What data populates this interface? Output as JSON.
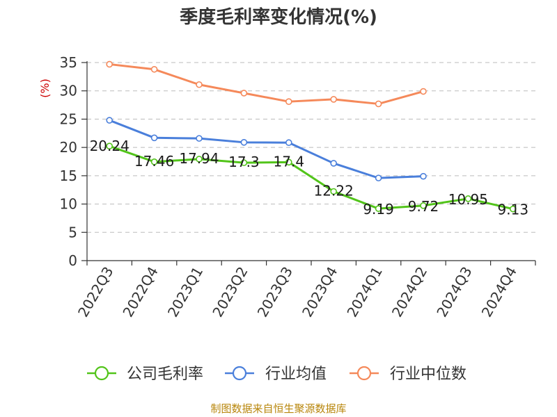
{
  "chart_data": {
    "type": "line",
    "title": "季度毛利率变化情况(%)",
    "ylabel": "(%)",
    "xlabel": "",
    "ylim": [
      0,
      35
    ],
    "yticks": [
      0,
      5,
      10,
      15,
      20,
      25,
      30,
      35
    ],
    "grid": true,
    "legend_position": "bottom",
    "categories": [
      "2022Q3",
      "2022Q4",
      "2023Q1",
      "2023Q2",
      "2023Q3",
      "2023Q4",
      "2024Q1",
      "2024Q2",
      "2024Q3",
      "2024Q4"
    ],
    "series": [
      {
        "name": "公司毛利率",
        "color": "#52c41a",
        "values": [
          20.24,
          17.46,
          17.94,
          17.3,
          17.4,
          12.22,
          9.19,
          9.72,
          10.95,
          9.13
        ],
        "labels": [
          "20.24",
          "17.46",
          "17.94",
          "17.3",
          "17.4",
          "12.22",
          "9.19",
          "9.72",
          "10.95",
          "9.13"
        ]
      },
      {
        "name": "行业均值",
        "color": "#4a7fdb",
        "values": [
          24.8,
          21.7,
          21.6,
          20.9,
          20.85,
          17.2,
          14.6,
          14.9,
          null,
          null
        ]
      },
      {
        "name": "行业中位数",
        "color": "#f5895a",
        "values": [
          34.7,
          33.8,
          31.1,
          29.6,
          28.1,
          28.5,
          27.7,
          29.9,
          null,
          null
        ]
      }
    ]
  },
  "footer": {
    "source": "制图数据来自恒生聚源数据库"
  }
}
